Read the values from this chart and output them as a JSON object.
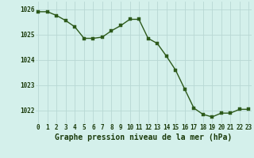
{
  "hours": [
    0,
    1,
    2,
    3,
    4,
    5,
    6,
    7,
    8,
    9,
    10,
    11,
    12,
    13,
    14,
    15,
    16,
    17,
    18,
    19,
    20,
    21,
    22,
    23
  ],
  "pressure": [
    1025.9,
    1025.9,
    1025.75,
    1025.55,
    1025.3,
    1024.85,
    1024.85,
    1024.9,
    1025.15,
    1025.35,
    1025.6,
    1025.6,
    1024.85,
    1024.65,
    1024.15,
    1023.6,
    1022.85,
    1022.1,
    1021.85,
    1021.75,
    1021.9,
    1021.9,
    1022.05,
    1022.05
  ],
  "line_color": "#2d5a1b",
  "marker_color": "#2d5a1b",
  "bg_color": "#d4f0eb",
  "grid_color": "#b8d8d4",
  "xlabel": "Graphe pression niveau de la mer (hPa)",
  "xlabel_color": "#1a3a0a",
  "ylim": [
    1021.5,
    1026.3
  ],
  "yticks": [
    1022,
    1023,
    1024,
    1025,
    1026
  ],
  "xticks": [
    0,
    1,
    2,
    3,
    4,
    5,
    6,
    7,
    8,
    9,
    10,
    11,
    12,
    13,
    14,
    15,
    16,
    17,
    18,
    19,
    20,
    21,
    22,
    23
  ],
  "tick_color": "#1a3a0a",
  "tick_fontsize": 5.5,
  "xlabel_fontsize": 7.0,
  "line_width": 1.0,
  "marker_size": 2.5
}
